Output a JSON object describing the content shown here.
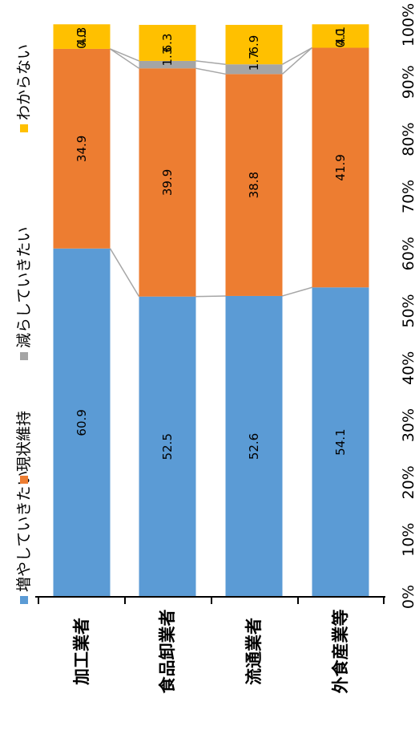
{
  "chart_data": {
    "type": "bar",
    "stacked": true,
    "orientation": "horizontal-100pct",
    "categories": [
      "加工業者",
      "食品卸業者",
      "流通業者",
      "外食産業等"
    ],
    "series": [
      {
        "name": "増やしていきたい",
        "color": "#5b9bd5",
        "values": [
          60.9,
          52.5,
          52.6,
          54.1
        ]
      },
      {
        "name": "現状維持",
        "color": "#ed7d31",
        "values": [
          34.9,
          39.9,
          38.8,
          41.9
        ]
      },
      {
        "name": "減らしていきたい",
        "color": "#a5a5a5",
        "values": [
          0.0,
          1.3,
          1.7,
          0.0
        ]
      },
      {
        "name": "わからない",
        "color": "#ffc000",
        "values": [
          4.3,
          6.3,
          6.9,
          4.1
        ]
      }
    ],
    "ticks": [
      "0%",
      "10%",
      "20%",
      "30%",
      "40%",
      "50%",
      "60%",
      "70%",
      "80%",
      "90%",
      "100%"
    ],
    "xlim": [
      0,
      100
    ],
    "legend_position": "left",
    "series_lines": true
  }
}
